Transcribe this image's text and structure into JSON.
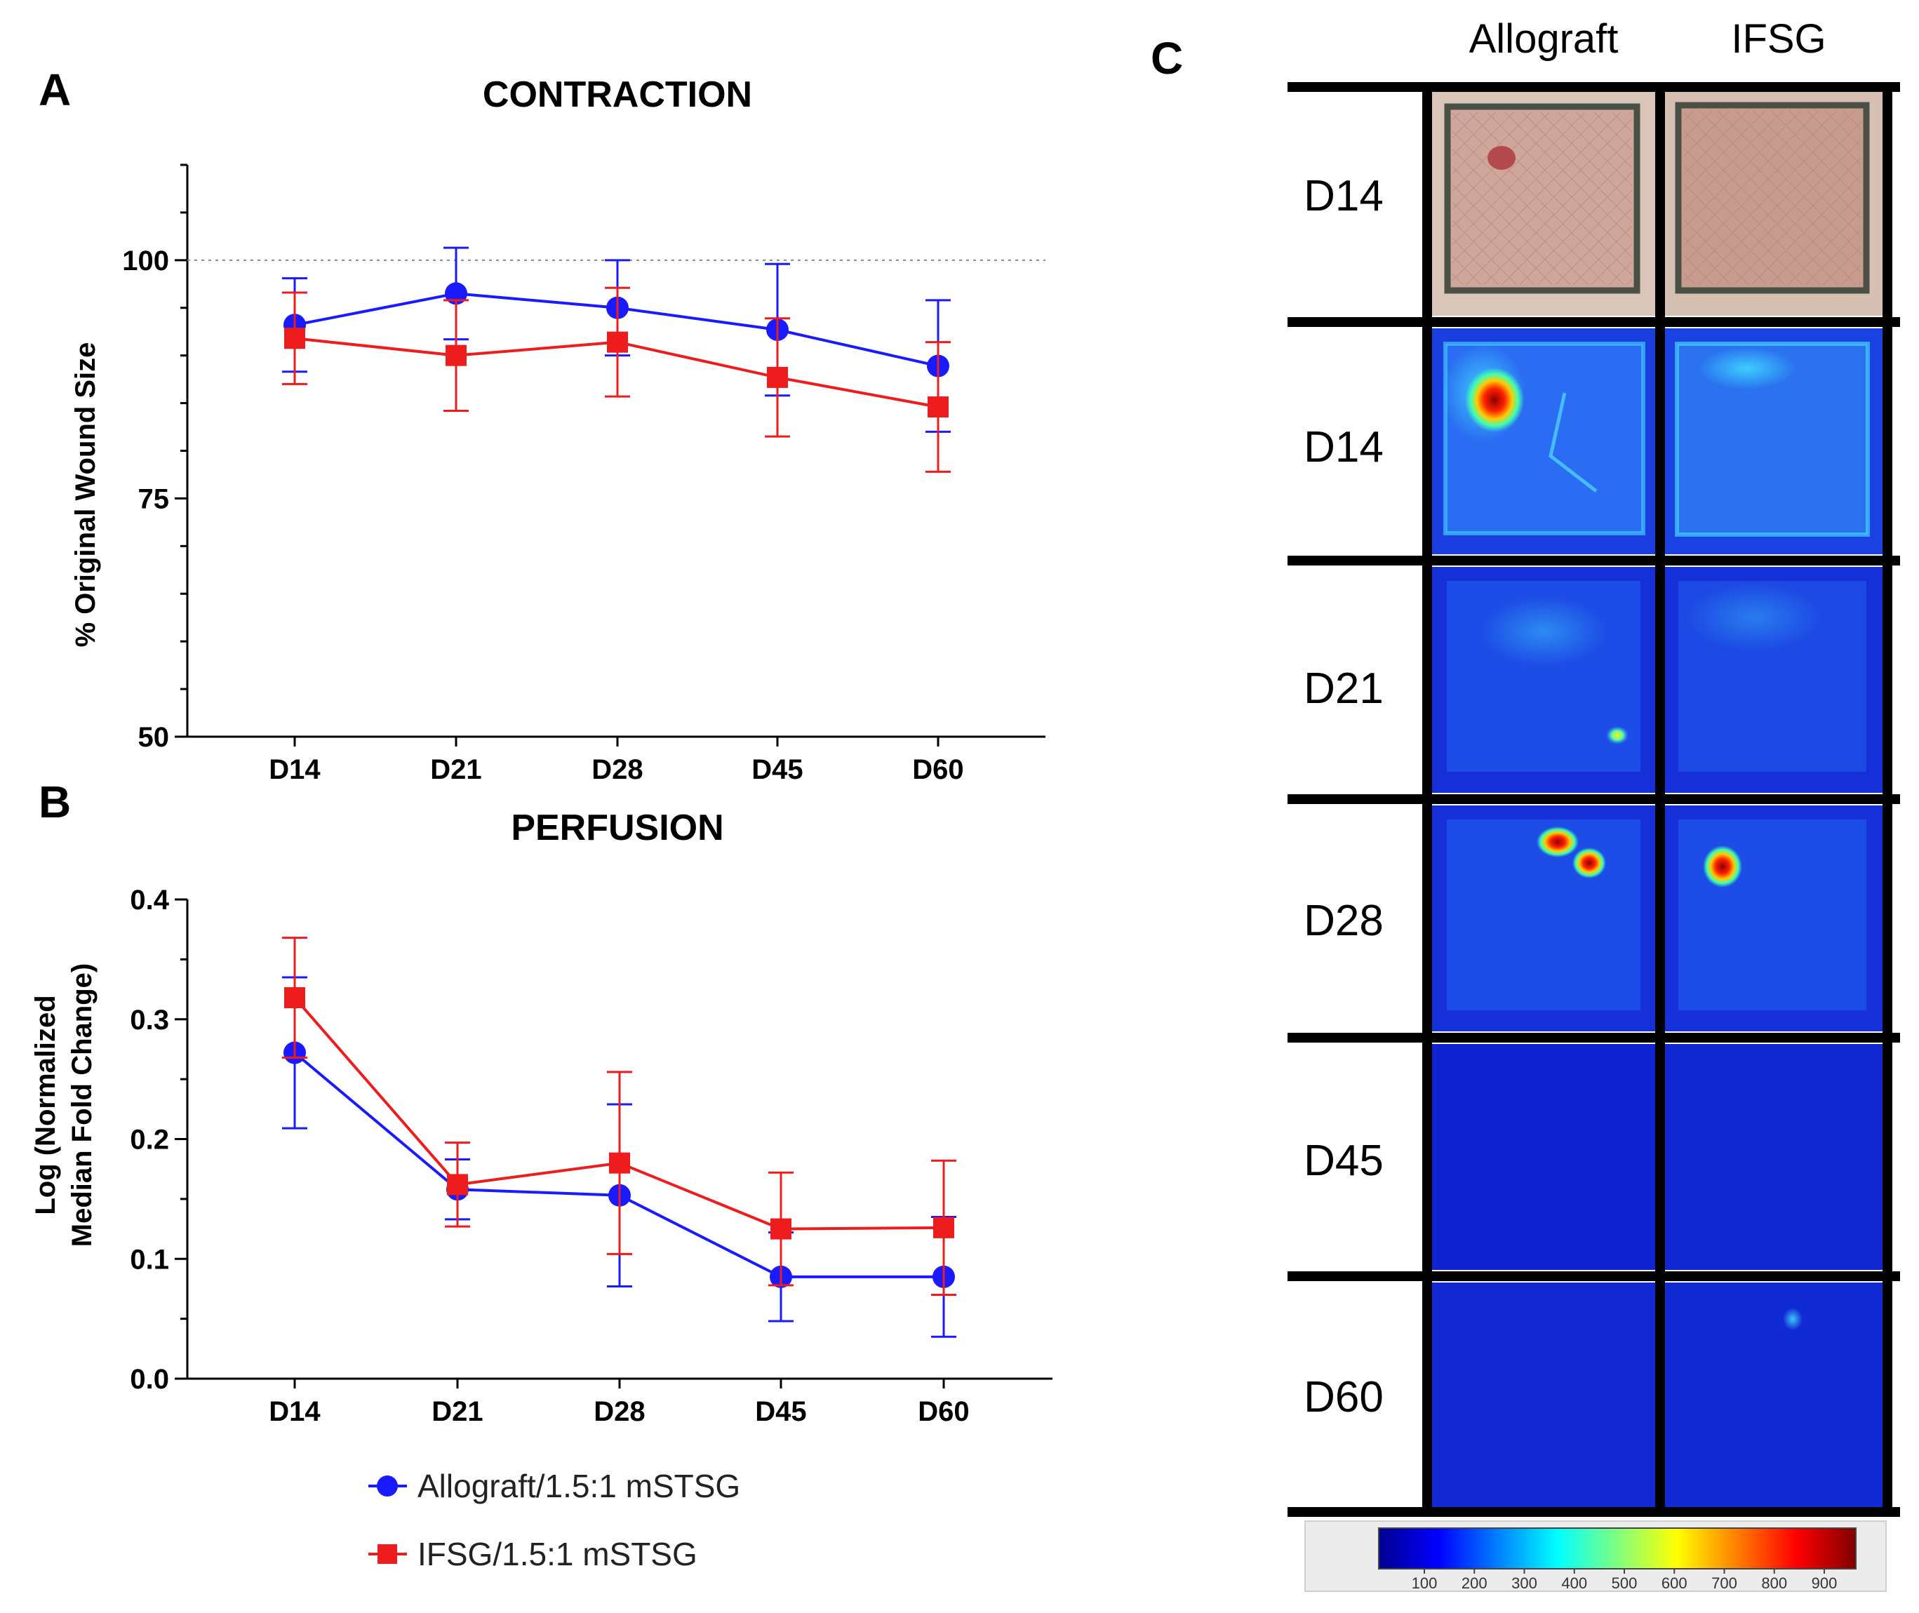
{
  "panel_labels": {
    "a": "A",
    "b": "B",
    "c": "C"
  },
  "colors": {
    "allograft": "#1a1aff",
    "ifsg": "#ee1c1c"
  },
  "legend": {
    "allograft": "Allograft/1.5:1 mSTSG",
    "ifsg": "IFSG/1.5:1 mSTSG"
  },
  "chart_data": [
    {
      "type": "line",
      "title": "CONTRACTION",
      "xlabel": "",
      "ylabel": "% Original Wound Size",
      "categories": [
        "D14",
        "D21",
        "D28",
        "D45",
        "D60"
      ],
      "ylim": [
        50,
        110
      ],
      "yticks": [
        "50",
        "75",
        "100"
      ],
      "reference_line": 100,
      "series": [
        {
          "name": "Allograft/1.5:1 mSTSG",
          "values": [
            93.2,
            96.5,
            95.0,
            92.7,
            88.9
          ],
          "err": [
            4.9,
            4.8,
            5.0,
            6.9,
            6.9
          ]
        },
        {
          "name": "IFSG/1.5:1 mSTSG",
          "values": [
            91.8,
            90.0,
            91.4,
            87.7,
            84.6
          ],
          "err": [
            4.8,
            5.8,
            5.7,
            6.2,
            6.8
          ]
        }
      ]
    },
    {
      "type": "line",
      "title": "PERFUSION",
      "xlabel": "",
      "ylabel": [
        "Log (Normalized",
        "Median Fold Change)"
      ],
      "categories": [
        "D14",
        "D21",
        "D28",
        "D45",
        "D60"
      ],
      "ylim": [
        0.0,
        0.4
      ],
      "yticks": [
        "0.0",
        "0.1",
        "0.2",
        "0.3",
        "0.4"
      ],
      "series": [
        {
          "name": "Allograft/1.5:1 mSTSG",
          "values": [
            0.272,
            0.158,
            0.153,
            0.085,
            0.085
          ],
          "err": [
            0.063,
            0.025,
            0.076,
            0.037,
            0.05
          ]
        },
        {
          "name": "IFSG/1.5:1 mSTSG",
          "values": [
            0.318,
            0.162,
            0.18,
            0.125,
            0.126
          ],
          "err": [
            0.05,
            0.035,
            0.076,
            0.047,
            0.056
          ]
        }
      ]
    }
  ],
  "panel_c": {
    "columns": [
      "Allograft",
      "IFSG"
    ],
    "rows": [
      "D14",
      "D14",
      "D21",
      "D28",
      "D45",
      "D60"
    ],
    "colorbar_ticks": [
      "100",
      "200",
      "300",
      "400",
      "500",
      "600",
      "700",
      "800",
      "900"
    ]
  }
}
